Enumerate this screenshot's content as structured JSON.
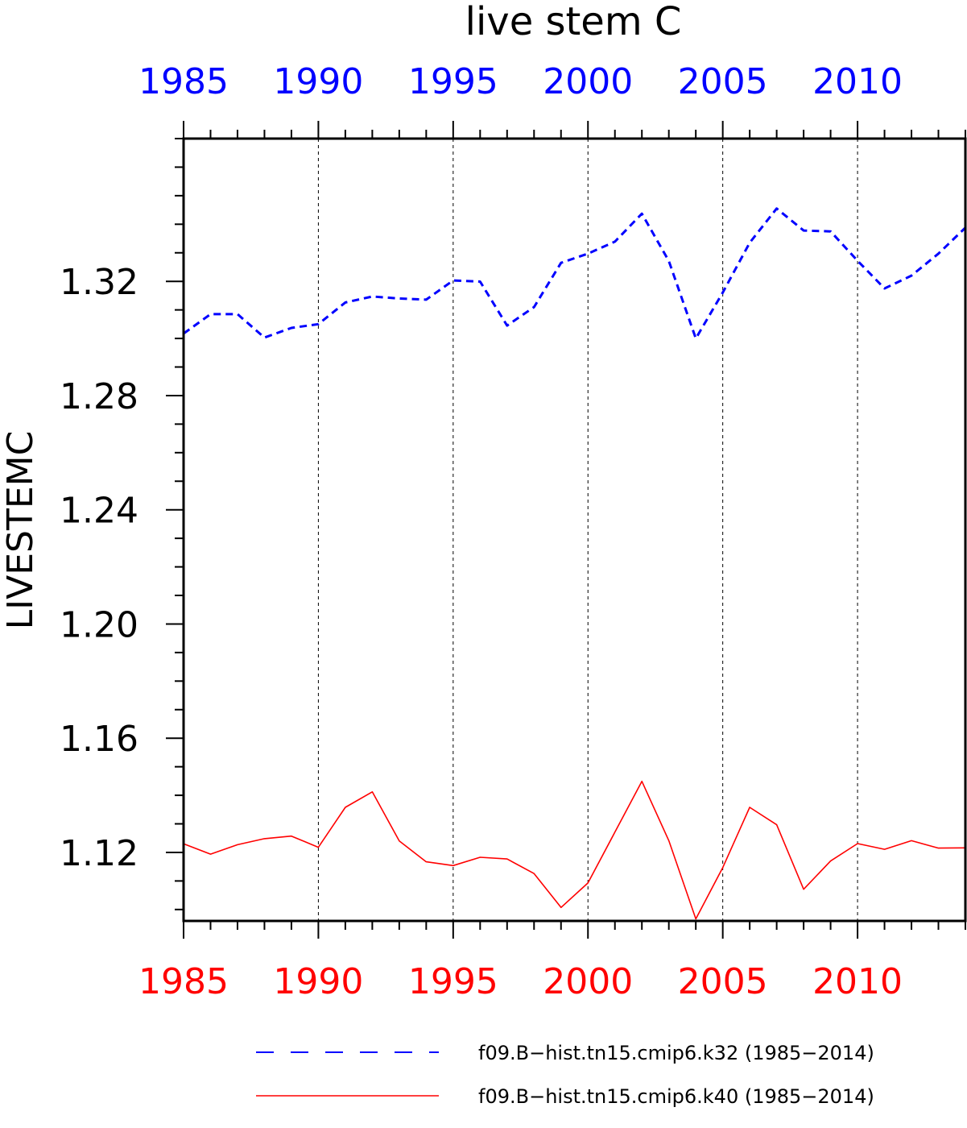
{
  "chart_data": {
    "type": "line",
    "title": "live stem C",
    "ylabel": "LIVESTEMC",
    "xlabel": "",
    "xlim": [
      1985,
      2014
    ],
    "ylim": [
      1.096,
      1.37
    ],
    "x_ticks": [
      1985,
      1990,
      1995,
      2000,
      2005,
      2010
    ],
    "y_ticks": [
      "1.12",
      "1.16",
      "1.20",
      "1.24",
      "1.28",
      "1.32"
    ],
    "grid": "vertical dashed at major x ticks",
    "top_axis_color": "#0000ff",
    "bottom_axis_color": "#ff0000",
    "x": [
      1985,
      1986,
      1987,
      1988,
      1989,
      1990,
      1991,
      1992,
      1993,
      1994,
      1995,
      1996,
      1997,
      1998,
      1999,
      2000,
      2001,
      2002,
      2003,
      2004,
      2005,
      2006,
      2007,
      2008,
      2009,
      2010,
      2011,
      2012,
      2013,
      2014
    ],
    "series": [
      {
        "name": "f09.B−hist.tn15.cmip6.k32 (1985−2014)",
        "color": "#0000ff",
        "dash": "dashed",
        "values": [
          1.3017,
          1.3085,
          1.3085,
          1.3003,
          1.3037,
          1.305,
          1.3126,
          1.3147,
          1.314,
          1.3136,
          1.3203,
          1.3199,
          1.3045,
          1.311,
          1.3265,
          1.3297,
          1.3339,
          1.3437,
          1.3271,
          1.3,
          1.3161,
          1.3335,
          1.3455,
          1.3378,
          1.3375,
          1.3272,
          1.3175,
          1.322,
          1.3297,
          1.3388
        ]
      },
      {
        "name": "f09.B−hist.tn15.cmip6.k40 (1985−2014)",
        "color": "#ff0000",
        "dash": "solid",
        "values": [
          1.123,
          1.1194,
          1.1227,
          1.1248,
          1.1257,
          1.1218,
          1.1358,
          1.1412,
          1.124,
          1.1167,
          1.1154,
          1.1183,
          1.1177,
          1.1126,
          1.1007,
          1.1093,
          1.1271,
          1.1449,
          1.1241,
          1.0967,
          1.1147,
          1.1358,
          1.1297,
          1.1071,
          1.117,
          1.1231,
          1.1211,
          1.1241,
          1.1215,
          1.1216
        ]
      }
    ]
  }
}
